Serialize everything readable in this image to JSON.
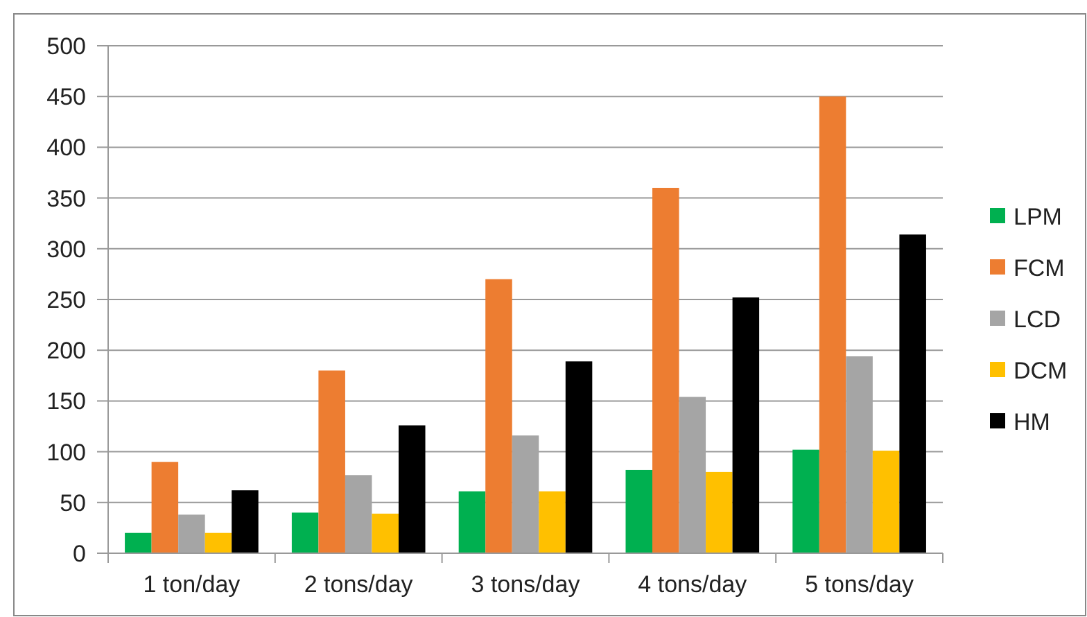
{
  "chart_data": {
    "type": "bar",
    "categories": [
      "1 ton/day",
      "2 tons/day",
      "3 tons/day",
      "4 tons/day",
      "5 tons/day"
    ],
    "series": [
      {
        "name": "LPM",
        "color": "#00b050",
        "values": [
          20,
          40,
          61,
          82,
          102
        ]
      },
      {
        "name": "FCM",
        "color": "#ed7d31",
        "values": [
          90,
          180,
          270,
          360,
          450
        ]
      },
      {
        "name": "LCD",
        "color": "#a5a5a5",
        "values": [
          38,
          77,
          116,
          154,
          194
        ]
      },
      {
        "name": "DCM",
        "color": "#ffc000",
        "values": [
          20,
          39,
          61,
          80,
          101
        ]
      },
      {
        "name": "HM",
        "color": "#000000",
        "values": [
          62,
          126,
          189,
          252,
          314
        ]
      }
    ],
    "ylim": [
      0,
      500
    ],
    "yticks": [
      0,
      50,
      100,
      150,
      200,
      250,
      300,
      350,
      400,
      450,
      500
    ],
    "grid": "y",
    "legend": "right"
  }
}
